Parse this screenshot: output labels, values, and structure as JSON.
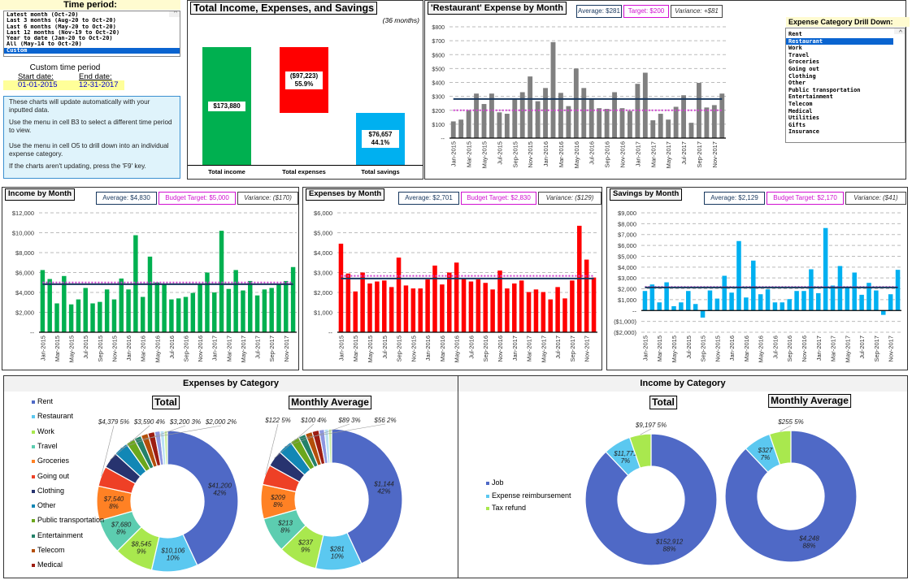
{
  "time_period": {
    "header": "Time period:",
    "options": [
      "Latest month (Oct-20)",
      "Last 3 months (Aug-20 to Oct-20)",
      "Last 6 months (May-20 to Oct-20)",
      "Last 12 months (Nov-19 to Oct-20)",
      "Year to date (Jan-20 to Oct-20)",
      "All (May-14 to Oct-20)",
      "Custom"
    ],
    "selected": "Custom",
    "custom_label": "Custom time period",
    "start_label": "Start date:",
    "end_label": "End date:",
    "start_date": "01-01-2015",
    "end_date": "12-31-2017"
  },
  "info": [
    "These charts will update automatically with your inputted data.",
    "Use the menu in cell B3 to select a different time period to view.",
    "Use the menu in cell O5 to drill down into an individual expense category.",
    "If the charts aren't updating, press the 'F9' key."
  ],
  "totals": {
    "title": "Total Income, Expenses, and Savings",
    "subtitle": "(36 months)",
    "bars": [
      {
        "label": "Total income",
        "value": 173880,
        "text": "$173,880",
        "pct": "",
        "color": "#00b050"
      },
      {
        "label": "Total expenses",
        "value": -97223,
        "text": "($97,223)",
        "pct": "55.9%",
        "color": "#ff0000"
      },
      {
        "label": "Total savings",
        "value": 76657,
        "text": "$76,657",
        "pct": "44.1%",
        "color": "#00b0f0"
      }
    ]
  },
  "drilldown": {
    "header": "Expense Category Drill Down:",
    "options": [
      "Rent",
      "Restaurant",
      "Work",
      "Travel",
      "Groceries",
      "Going out",
      "Clothing",
      "Other",
      "Public transportation",
      "Entertainment",
      "Telecom",
      "Medical",
      "Utilities",
      "Gifts",
      "Insurance"
    ],
    "selected": "Restaurant"
  },
  "chart_data": [
    {
      "id": "restaurant",
      "type": "bar",
      "title": "'Restaurant' Expense by Month",
      "average_label": "Average: $281",
      "target_label": "Target: $200",
      "variance_label": "Variance: +$81",
      "average": 281,
      "target": 200,
      "color": "#808080",
      "ylim": [
        0,
        800
      ],
      "yticks": [
        "--",
        "$100",
        "$200",
        "$300",
        "$400",
        "$500",
        "$600",
        "$700",
        "$800"
      ],
      "categories": [
        "Jan-2015",
        "Feb-2015",
        "Mar-2015",
        "Apr-2015",
        "May-2015",
        "Jun-2015",
        "Jul-2015",
        "Aug-2015",
        "Sep-2015",
        "Oct-2015",
        "Nov-2015",
        "Dec-2015",
        "Jan-2016",
        "Feb-2016",
        "Mar-2016",
        "Apr-2016",
        "May-2016",
        "Jun-2016",
        "Jul-2016",
        "Aug-2016",
        "Sep-2016",
        "Oct-2016",
        "Nov-2016",
        "Dec-2016",
        "Jan-2017",
        "Feb-2017",
        "Mar-2017",
        "Apr-2017",
        "May-2017",
        "Jun-2017",
        "Jul-2017",
        "Aug-2017",
        "Sep-2017",
        "Oct-2017",
        "Nov-2017",
        "Dec-2017"
      ],
      "values": [
        120,
        133,
        200,
        320,
        245,
        320,
        185,
        175,
        280,
        330,
        443,
        265,
        360,
        690,
        325,
        230,
        500,
        360,
        280,
        215,
        210,
        330,
        215,
        195,
        390,
        470,
        128,
        175,
        133,
        225,
        308,
        110,
        397,
        220,
        237,
        320
      ]
    },
    {
      "id": "income",
      "type": "bar",
      "title": "Income by Month",
      "average_label": "Average: $4,830",
      "target_label": "Budget Target: $5,000",
      "variance_label": "Variance: ($170)",
      "average": 4830,
      "target": 5000,
      "color": "#00b050",
      "ylim": [
        0,
        12000
      ],
      "yticks": [
        "--",
        "$2,000",
        "$4,000",
        "$6,000",
        "$8,000",
        "$10,000",
        "$12,000"
      ],
      "categories": [
        "Jan-2015",
        "Feb-2015",
        "Mar-2015",
        "Apr-2015",
        "May-2015",
        "Jun-2015",
        "Jul-2015",
        "Aug-2015",
        "Sep-2015",
        "Oct-2015",
        "Nov-2015",
        "Dec-2015",
        "Jan-2016",
        "Feb-2016",
        "Mar-2016",
        "Apr-2016",
        "May-2016",
        "Jun-2016",
        "Jul-2016",
        "Aug-2016",
        "Sep-2016",
        "Oct-2016",
        "Nov-2016",
        "Dec-2016",
        "Jan-2017",
        "Feb-2017",
        "Mar-2017",
        "Apr-2017",
        "May-2017",
        "Jun-2017",
        "Jul-2017",
        "Aug-2017",
        "Sep-2017",
        "Oct-2017",
        "Nov-2017",
        "Dec-2017"
      ],
      "values": [
        6250,
        5350,
        2900,
        5650,
        2800,
        3300,
        4450,
        2900,
        3050,
        4300,
        3300,
        5400,
        4300,
        9750,
        3550,
        7600,
        5000,
        4800,
        3300,
        3400,
        3550,
        3950,
        4800,
        6000,
        4000,
        10200,
        4350,
        6250,
        4200,
        5150,
        3700,
        4300,
        4450,
        4800,
        5150,
        6550
      ]
    },
    {
      "id": "expenses",
      "type": "bar",
      "title": "Expenses by Month",
      "average_label": "Average: $2,701",
      "target_label": "Budget Target: $2,830",
      "variance_label": "Variance: ($129)",
      "average": 2701,
      "target": 2830,
      "color": "#ff0000",
      "ylim": [
        0,
        6000
      ],
      "yticks": [
        "--",
        "$1,000",
        "$2,000",
        "$3,000",
        "$4,000",
        "$5,000",
        "$6,000"
      ],
      "categories": [
        "Jan-2015",
        "Feb-2015",
        "Mar-2015",
        "Apr-2015",
        "May-2015",
        "Jun-2015",
        "Jul-2015",
        "Aug-2015",
        "Sep-2015",
        "Oct-2015",
        "Nov-2015",
        "Dec-2015",
        "Jan-2016",
        "Feb-2016",
        "Mar-2016",
        "Apr-2016",
        "May-2016",
        "Jun-2016",
        "Jul-2016",
        "Aug-2016",
        "Sep-2016",
        "Oct-2016",
        "Nov-2016",
        "Dec-2016",
        "Jan-2017",
        "Feb-2017",
        "Mar-2017",
        "Apr-2017",
        "May-2017",
        "Jun-2017",
        "Jul-2017",
        "Aug-2017",
        "Sep-2017",
        "Oct-2017",
        "Nov-2017",
        "Dec-2017"
      ],
      "values": [
        4450,
        2950,
        2050,
        3000,
        2450,
        2550,
        2600,
        2270,
        3750,
        2350,
        2200,
        2200,
        2650,
        3350,
        2400,
        3000,
        3500,
        2700,
        2550,
        2650,
        2480,
        2150,
        3100,
        2200,
        2450,
        2600,
        2020,
        2150,
        2020,
        1650,
        2270,
        1700,
        2600,
        5350,
        3650,
        2750
      ]
    },
    {
      "id": "savings",
      "type": "bar",
      "title": "Savings by Month",
      "average_label": "Average: $2,129",
      "target_label": "Budget Target: $2,170",
      "variance_label": "Variance: ($41)",
      "average": 2129,
      "target": 2170,
      "color": "#00b0f0",
      "ylim": [
        -2000,
        9000
      ],
      "yticks": [
        "($2,000)",
        "($1,000)",
        "--",
        "$1,000",
        "$2,000",
        "$3,000",
        "$4,000",
        "$5,000",
        "$6,000",
        "$7,000",
        "$8,000",
        "$9,000"
      ],
      "categories": [
        "Jan-2015",
        "Feb-2015",
        "Mar-2015",
        "Apr-2015",
        "May-2015",
        "Jun-2015",
        "Jul-2015",
        "Aug-2015",
        "Sep-2015",
        "Oct-2015",
        "Nov-2015",
        "Dec-2015",
        "Jan-2016",
        "Feb-2016",
        "Mar-2016",
        "Apr-2016",
        "May-2016",
        "Jun-2016",
        "Jul-2016",
        "Aug-2016",
        "Sep-2016",
        "Oct-2016",
        "Nov-2016",
        "Dec-2016",
        "Jan-2017",
        "Feb-2017",
        "Mar-2017",
        "Apr-2017",
        "May-2017",
        "Jun-2017",
        "Jul-2017",
        "Aug-2017",
        "Sep-2017",
        "Oct-2017",
        "Nov-2017",
        "Dec-2017"
      ],
      "values": [
        1800,
        2400,
        750,
        2600,
        400,
        750,
        1800,
        600,
        -650,
        1850,
        1100,
        3200,
        1650,
        6400,
        1200,
        4600,
        1500,
        1950,
        750,
        750,
        1050,
        1800,
        1800,
        3800,
        1600,
        7600,
        2300,
        4100,
        2200,
        3500,
        1450,
        2550,
        1850,
        -400,
        1500,
        3750
      ]
    },
    {
      "id": "exp-cat",
      "type": "pie",
      "title": "Expenses by Category",
      "subtitles": [
        "Total",
        "Monthly Average"
      ],
      "categories": [
        "Rent",
        "Restaurant",
        "Work",
        "Travel",
        "Groceries",
        "Going out",
        "Clothing",
        "Other",
        "Public transportation",
        "Entertainment",
        "Telecom",
        "Medical",
        "Utilities",
        "Gifts",
        "Insurance"
      ],
      "legend": [
        "Rent",
        "Restaurant",
        "Work",
        "Travel",
        "Groceries",
        "Going out",
        "Clothing",
        "Other",
        "Public transportation",
        "Entertainment",
        "Telecom",
        "Medical"
      ],
      "colors": [
        "#4f69c6",
        "#5bc8f0",
        "#a9e84e",
        "#5ccdb0",
        "#ff8124",
        "#ee4026",
        "#27336f",
        "#1287b5",
        "#6ba71d",
        "#248169",
        "#b44f0a",
        "#9d1d12",
        "#8e97e0",
        "#b8e0f5",
        "#c8eca0"
      ],
      "total": [
        41200,
        10106,
        8545,
        7680,
        7540,
        4379,
        3590,
        3200,
        2000,
        1600,
        1550,
        1500,
        1200,
        900,
        700
      ],
      "total_labels": [
        "$41,200\n42%",
        "$10,106\n10%",
        "$8,545\n9%",
        "$7,680\n8%",
        "$7,540\n8%",
        "$4,379\n5%",
        "$3,590\n4%",
        "$3,200\n3%",
        "$2,000\n2%",
        "",
        "",
        "",
        "",
        "",
        ""
      ],
      "average": [
        1144,
        281,
        237,
        213,
        209,
        122,
        100,
        89,
        56,
        44,
        43,
        42,
        33,
        25,
        19
      ],
      "average_labels": [
        "$1,144\n42%",
        "$281\n10%",
        "$237\n9%",
        "$213\n8%",
        "$209\n8%",
        "$122\n5%",
        "$100\n4%",
        "$89\n3%",
        "$56\n2%",
        "",
        "",
        "",
        "",
        "",
        ""
      ]
    },
    {
      "id": "inc-cat",
      "type": "pie",
      "title": "Income by Category",
      "subtitles": [
        "Total",
        "Monthly Average"
      ],
      "categories": [
        "Job",
        "Expense reimbursement",
        "Tax refund"
      ],
      "legend": [
        "Job",
        "Expense reimbursement",
        "Tax refund"
      ],
      "colors": [
        "#4f69c6",
        "#5bc8f0",
        "#a9e84e"
      ],
      "total": [
        152912,
        11771,
        9197
      ],
      "total_labels": [
        "$152,912\n88%",
        "$11,771\n7%",
        "$9,197\n5%"
      ],
      "average": [
        4248,
        327,
        255
      ],
      "average_labels": [
        "$4,248\n88%",
        "$327\n7%",
        "$255\n5%"
      ]
    }
  ]
}
